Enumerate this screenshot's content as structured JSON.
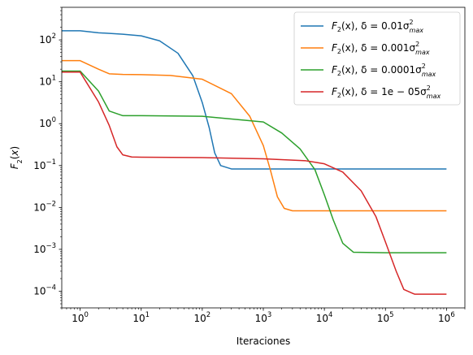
{
  "chart_data": {
    "type": "line",
    "xscale": "log",
    "yscale": "log",
    "xlabel": "Iteraciones",
    "ylabel": "F2(x)",
    "xlim": [
      0.5,
      2000000
    ],
    "ylim": [
      4e-05,
      600
    ],
    "grid": false,
    "legend_position": "top-right",
    "x_ticks": [
      {
        "value": 1,
        "base": "10",
        "exp": "0"
      },
      {
        "value": 10,
        "base": "10",
        "exp": "1"
      },
      {
        "value": 100,
        "base": "10",
        "exp": "2"
      },
      {
        "value": 1000,
        "base": "10",
        "exp": "3"
      },
      {
        "value": 10000,
        "base": "10",
        "exp": "4"
      },
      {
        "value": 100000,
        "base": "10",
        "exp": "5"
      },
      {
        "value": 1000000,
        "base": "10",
        "exp": "6"
      }
    ],
    "y_ticks": [
      {
        "value": 0.0001,
        "base": "10",
        "exp": "−4"
      },
      {
        "value": 0.001,
        "base": "10",
        "exp": "−3"
      },
      {
        "value": 0.01,
        "base": "10",
        "exp": "−2"
      },
      {
        "value": 0.1,
        "base": "10",
        "exp": "−1"
      },
      {
        "value": 1,
        "base": "10",
        "exp": "0"
      },
      {
        "value": 10,
        "base": "10",
        "exp": "1"
      },
      {
        "value": 100,
        "base": "10",
        "exp": "2"
      }
    ],
    "series": [
      {
        "name": "F2(x), δ = 0.01σ²max",
        "legend": {
          "prefix": "F",
          "sub": "2",
          "mid": "(x), δ = 0.01σ",
          "sup2": "2",
          "sub2": "max"
        },
        "color": "#1f77b4",
        "x": [
          0.5,
          1,
          2,
          5,
          10,
          20,
          40,
          70,
          100,
          130,
          160,
          200,
          300,
          1000,
          10000,
          1000000
        ],
        "y": [
          165,
          165,
          148,
          137,
          125,
          95,
          48,
          14,
          3.2,
          0.8,
          0.2,
          0.1,
          0.083,
          0.083,
          0.083,
          0.083
        ]
      },
      {
        "name": "F2(x), δ = 0.001σ²max",
        "legend": {
          "prefix": "F",
          "sub": "2",
          "mid": "(x), δ = 0.001σ",
          "sup2": "2",
          "sub2": "max"
        },
        "color": "#ff7f0e",
        "x": [
          0.5,
          1,
          2,
          3,
          5,
          10,
          30,
          100,
          300,
          600,
          1000,
          1300,
          1700,
          2200,
          3000,
          10000,
          1000000
        ],
        "y": [
          32,
          32,
          20,
          15.5,
          15,
          14.8,
          14.2,
          11.5,
          5.2,
          1.5,
          0.3,
          0.08,
          0.018,
          0.0095,
          0.0083,
          0.0083,
          0.0083
        ]
      },
      {
        "name": "F2(x), δ = 0.0001σ²max",
        "legend": {
          "prefix": "F",
          "sub": "2",
          "mid": "(x), δ = 0.0001σ",
          "sup2": "2",
          "sub2": "max"
        },
        "color": "#2ca02c",
        "x": [
          0.5,
          1,
          2,
          3,
          5,
          10,
          100,
          1000,
          2000,
          4000,
          7000,
          10000,
          14000,
          20000,
          30000,
          100000,
          1000000
        ],
        "y": [
          18,
          18,
          6,
          2,
          1.55,
          1.55,
          1.5,
          1.1,
          0.6,
          0.25,
          0.08,
          0.02,
          0.005,
          0.0014,
          0.00085,
          0.00083,
          0.00083
        ]
      },
      {
        "name": "F2(x), δ = 1e − 05σ²max",
        "legend": {
          "prefix": "F",
          "sub": "2",
          "mid": "(x), δ = 1e − 05σ",
          "sup2": "2",
          "sub2": "max"
        },
        "color": "#d62728",
        "x": [
          0.5,
          1,
          2,
          3,
          4,
          5,
          7,
          10,
          100,
          1000,
          5000,
          10000,
          20000,
          40000,
          70000,
          100000,
          150000,
          200000,
          300000,
          1000000
        ],
        "y": [
          17,
          17,
          3.3,
          0.9,
          0.28,
          0.18,
          0.16,
          0.158,
          0.155,
          0.145,
          0.13,
          0.11,
          0.07,
          0.025,
          0.006,
          0.0015,
          0.0003,
          0.00011,
          8.5e-05,
          8.5e-05
        ]
      }
    ]
  }
}
